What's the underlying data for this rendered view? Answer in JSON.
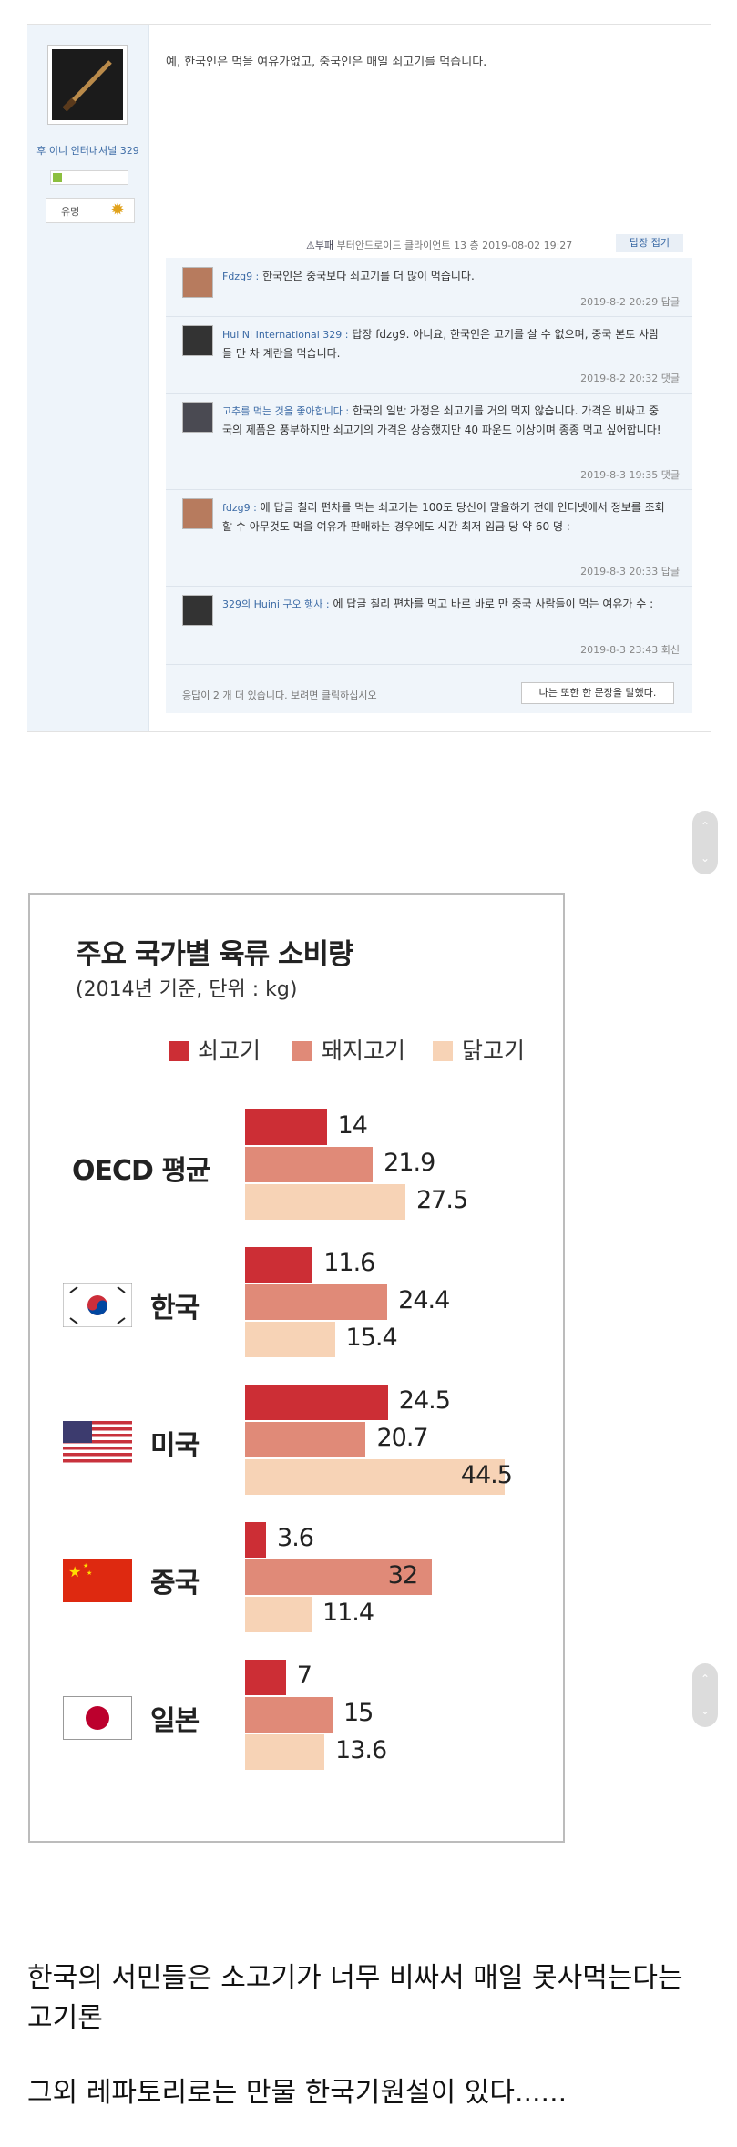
{
  "forum": {
    "username": "후 이니 인터내셔널 329",
    "user_title": "유명",
    "post_text": "예, 한국인은 먹을 여유가없고, 중국인은 매일 쇠고기를 먹습니다.",
    "meta_report": "⚠부패",
    "meta_info": "부터안드로이드 클라이언트 13 층 2019-08-02 19:27",
    "reply_toggle": "답장 접기",
    "comments": [
      {
        "name": "Fdzg9 :",
        "text": "한국인은 중국보다 쇠고기를 더 많이 먹습니다.",
        "time": "2019-8-2 20:29  답글"
      },
      {
        "name": "Hui Ni International 329 :",
        "text": "답장 fdzg9. 아니요, 한국인은 고기를 살 수 없으며, 중국 본토 사람들 만 차 계란을 먹습니다.",
        "time": "2019-8-2 20:32  댓글"
      },
      {
        "name": "고추를 먹는 것을 좋아합니다 :",
        "text": "한국의 일반 가정은 쇠고기를 거의 먹지 않습니다. 가격은 비싸고 중국의 제품은 풍부하지만 쇠고기의 가격은 상승했지만 40 파운드 이상이며 종종 먹고 싶어합니다!",
        "time": "2019-8-3 19:35  댓글"
      },
      {
        "name": "fdzg9 :",
        "text": "에 답글 칠리 편차를 먹는 쇠고기는 100도 당신이 말을하기 전에 인터넷에서 정보를 조회 할 수 아무것도 먹을 여유가 판매하는 경우에도 시간 최저 임금 당 약 60 명 :",
        "time": "2019-8-3 20:33  답글"
      },
      {
        "name": "329의 Huini 구오 행사 :",
        "text": "에 답글 칠리 편차를 먹고 바로 바로 만 중국 사람들이 먹는 여유가 수 :",
        "time": "2019-8-3 23:43  회신"
      }
    ],
    "more_text": "응답이 2 개 더 있습니다. 보려면 클릭하십시오",
    "more_button": "나는 또한 한 문장을 말했다."
  },
  "scroll": {
    "up": "⌃",
    "down": "⌄"
  },
  "chart_data": {
    "type": "bar",
    "title": "주요 국가별 육류 소비량",
    "subtitle": "(2014년 기준, 단위 : kg)",
    "categories": [
      "OECD 평균",
      "한국",
      "미국",
      "중국",
      "일본"
    ],
    "series": [
      {
        "name": "쇠고기",
        "color": "#cc2e35",
        "values": [
          14,
          11.6,
          24.5,
          3.6,
          7
        ]
      },
      {
        "name": "돼지고기",
        "color": "#e08a78",
        "values": [
          21.9,
          24.4,
          20.7,
          32,
          15
        ]
      },
      {
        "name": "닭고기",
        "color": "#f7d3b6",
        "values": [
          27.5,
          15.4,
          44.5,
          11.4,
          13.6
        ]
      }
    ],
    "value_labels": [
      [
        "14",
        "21.9",
        "27.5"
      ],
      [
        "11.6",
        "24.4",
        "15.4"
      ],
      [
        "24.5",
        "20.7",
        "44.5"
      ],
      [
        "3.6",
        "32",
        "11.4"
      ],
      [
        "7",
        "15",
        "13.6"
      ]
    ],
    "flags": [
      "",
      "korea-flag",
      "usa-flag",
      "china-flag",
      "japan-flag"
    ]
  },
  "caption": {
    "line1": "한국의 서민들은 소고기가 너무 비싸서 매일 못사먹는다는",
    "line2": "고기론",
    "line3": "그외 레파토리로는 만물 한국기원설이 있다......"
  }
}
